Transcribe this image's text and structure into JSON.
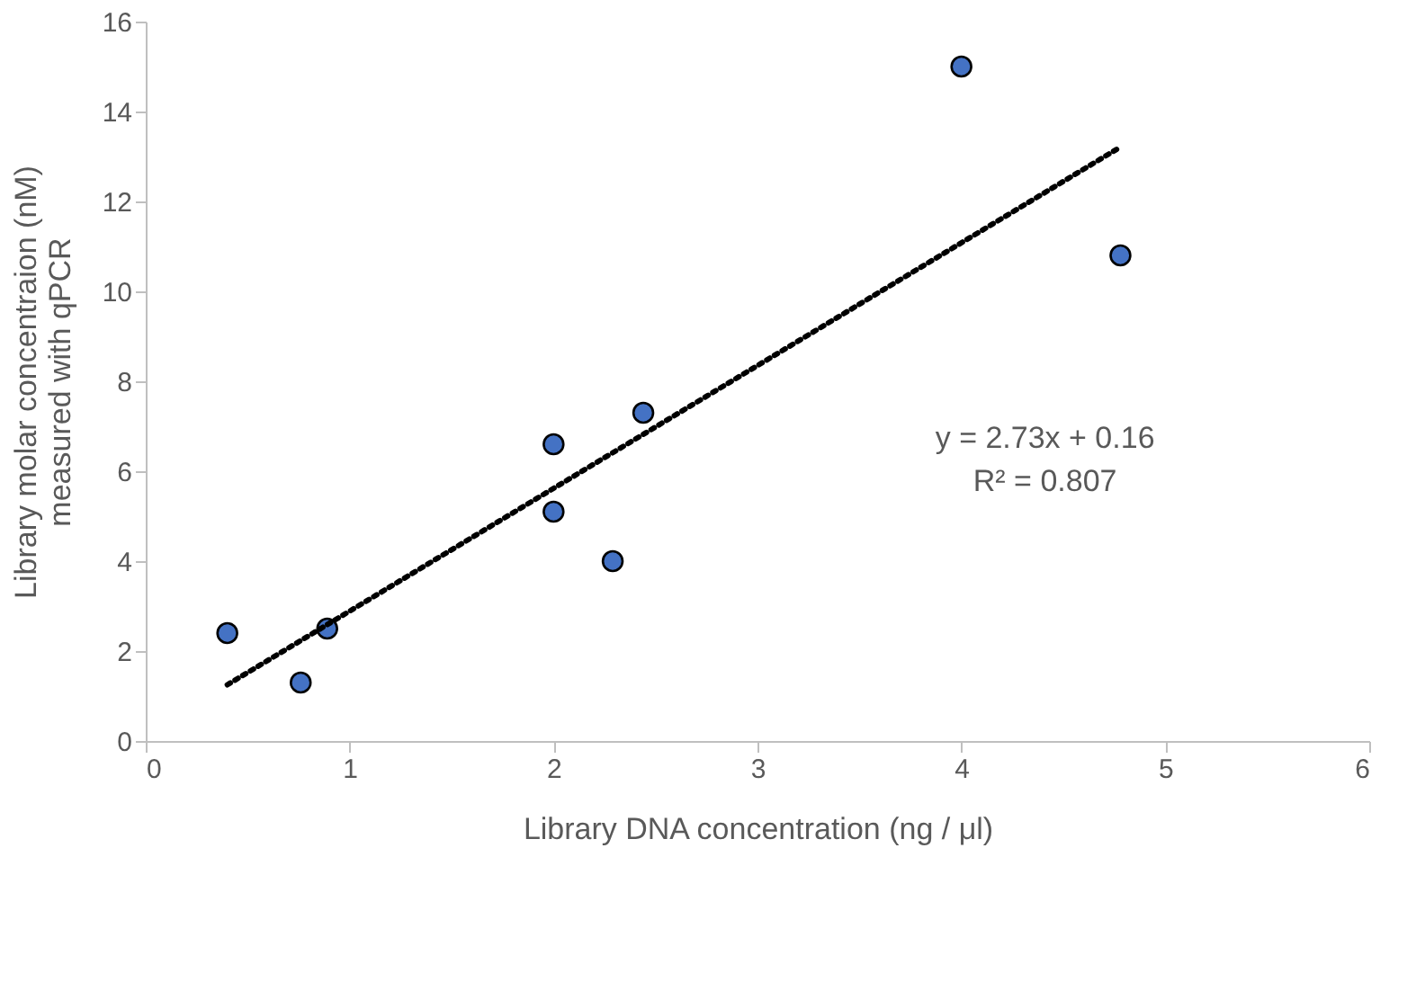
{
  "chart_data": {
    "type": "scatter",
    "xlabel": "Library DNA concentration (ng / μl)",
    "ylabel": "Library molar concentraion (nM)\nmeasured with qPCR",
    "x": [
      0.4,
      0.76,
      0.89,
      2.0,
      2.0,
      2.29,
      2.44,
      4.0,
      4.78
    ],
    "series": [
      {
        "color": "#4472c4",
        "values": [
          2.4,
          1.3,
          2.5,
          6.6,
          5.1,
          4.0,
          7.3,
          15.0,
          10.8
        ]
      },
      {
        "type": "line",
        "color": "#000000",
        "line_style": "dotted",
        "marker": "none",
        "x": [
          0.4,
          4.78
        ],
        "values": [
          1.25,
          13.21
        ]
      }
    ],
    "xlim": [
      0,
      6
    ],
    "xticks": [
      0,
      1,
      2,
      3,
      4,
      5,
      6
    ],
    "ylim": [
      0,
      16
    ],
    "yticks": [
      0,
      2,
      4,
      6,
      8,
      10,
      12,
      14,
      16
    ],
    "marker": "circle",
    "grid": false,
    "annotations": [
      "y = 2.73x + 0.16",
      "R² = 0.807"
    ]
  }
}
